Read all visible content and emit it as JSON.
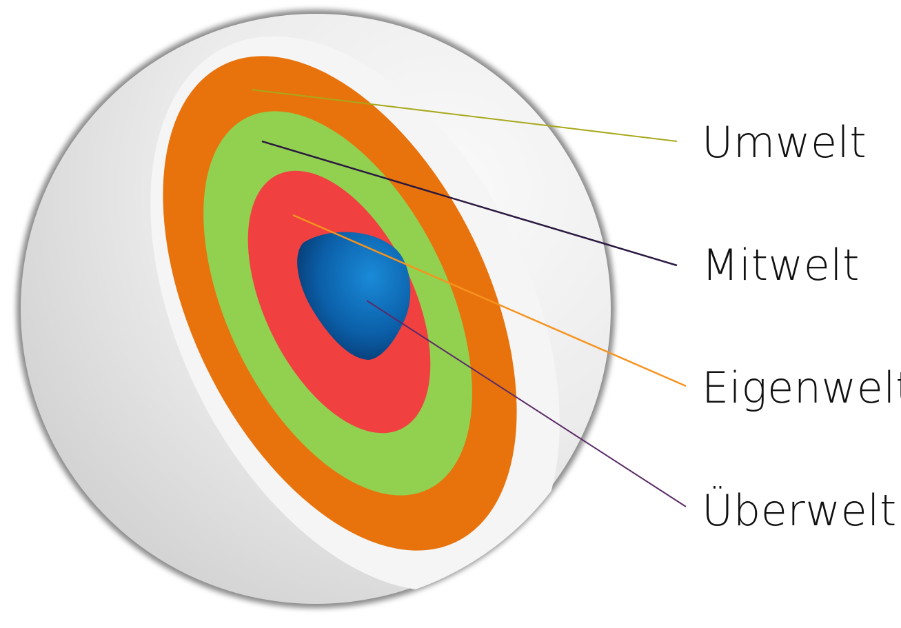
{
  "diagram": {
    "layers": [
      {
        "label": "Umwelt",
        "color": "#e8730c",
        "leader_color": "#a8a81c"
      },
      {
        "label": "Mitwelt",
        "color": "#92d050",
        "leader_color": "#2a1840"
      },
      {
        "label": "Eigenwelt",
        "color": "#f04040",
        "leader_color": "#f7931e"
      },
      {
        "label": "Überwelt",
        "color": "#0b5fa8",
        "leader_color": "#5a2a66"
      }
    ],
    "sphere_color": "#e9e9e9"
  }
}
